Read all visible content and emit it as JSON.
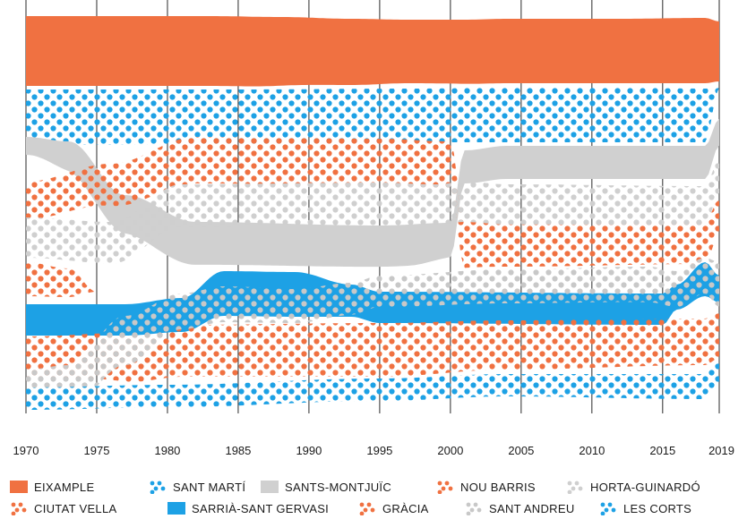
{
  "chart_data": {
    "type": "area",
    "x_ticks": [
      1970,
      1975,
      1980,
      1985,
      1990,
      1995,
      2000,
      2005,
      2010,
      2015,
      2019
    ],
    "xlim": [
      1970,
      2019
    ],
    "grid": "vertical",
    "legend_position": "bottom",
    "series": [
      {
        "name": "EIXAMPLE",
        "color": "#F07141",
        "pattern": "solid",
        "y": [
          [
            1970,
            0
          ],
          [
            1983,
            0
          ],
          [
            1988,
            1
          ],
          [
            1993,
            3
          ],
          [
            1997,
            4
          ],
          [
            2001,
            4
          ],
          [
            2004,
            3
          ],
          [
            2012,
            3
          ],
          [
            2018,
            2
          ],
          [
            2019,
            6
          ]
        ],
        "h": [
          [
            1970,
            78
          ],
          [
            1985,
            78
          ],
          [
            1993,
            74
          ],
          [
            1997,
            71
          ],
          [
            2004,
            72
          ],
          [
            2012,
            72
          ],
          [
            2018,
            73
          ],
          [
            2019,
            67
          ]
        ]
      },
      {
        "name": "SANT MARTÍ",
        "color": "#1DA1E5",
        "pattern": "dots",
        "y": [
          [
            1970,
            82
          ],
          [
            1985,
            82
          ],
          [
            1997,
            81
          ],
          [
            2004,
            80
          ],
          [
            2012,
            80
          ],
          [
            2018,
            81
          ],
          [
            2019,
            80
          ]
        ],
        "h": [
          [
            1970,
            62
          ],
          [
            1985,
            61
          ],
          [
            1997,
            60
          ],
          [
            2004,
            61
          ],
          [
            2012,
            61
          ],
          [
            2018,
            60
          ],
          [
            2019,
            0
          ]
        ]
      },
      {
        "name": "SANTS-MONTJUÏC",
        "color": "#D0D0D0",
        "pattern": "solid",
        "y": [
          [
            1970,
            135
          ],
          [
            1973,
            140
          ],
          [
            1977,
            200
          ],
          [
            1982,
            230
          ],
          [
            1995,
            234
          ],
          [
            2000,
            231
          ],
          [
            2001,
            150
          ],
          [
            2004,
            145
          ],
          [
            2018,
            145
          ],
          [
            2019,
            115
          ]
        ],
        "h": [
          [
            1970,
            20
          ],
          [
            1975,
            40
          ],
          [
            1980,
            48
          ],
          [
            1997,
            46
          ],
          [
            2001,
            37
          ],
          [
            2018,
            37
          ],
          [
            2019,
            30
          ]
        ]
      },
      {
        "name": "NOU BARRIS",
        "color": "#F07141",
        "pattern": "dots",
        "y": [
          [
            1970,
            185
          ],
          [
            1976,
            165
          ],
          [
            1982,
            135
          ],
          [
            1995,
            137
          ],
          [
            2000,
            140
          ],
          [
            2001,
            230
          ],
          [
            2004,
            232
          ],
          [
            2018,
            230
          ],
          [
            2019,
            205
          ]
        ],
        "h": [
          [
            1970,
            42
          ],
          [
            1982,
            52
          ],
          [
            1995,
            52
          ],
          [
            2000,
            52
          ],
          [
            2004,
            48
          ],
          [
            2018,
            47
          ],
          [
            2019,
            38
          ]
        ]
      },
      {
        "name": "HORTA-GUINARDÓ",
        "color": "#CFCFCF",
        "pattern": "dots",
        "y": [
          [
            1970,
            225
          ],
          [
            1976,
            230
          ],
          [
            1981,
            188
          ],
          [
            1995,
            186
          ],
          [
            1999,
            188
          ],
          [
            2001,
            185
          ],
          [
            2004,
            188
          ],
          [
            2018,
            190
          ],
          [
            2019,
            160
          ]
        ],
        "h": [
          [
            1970,
            45
          ],
          [
            1981,
            48
          ],
          [
            1995,
            48
          ],
          [
            2001,
            45
          ],
          [
            2018,
            44
          ],
          [
            2019,
            38
          ]
        ]
      },
      {
        "name": "CIUTAT VELLA",
        "color": "#F07141",
        "pattern": "dots",
        "y": [
          [
            1970,
            275
          ],
          [
            1973,
            282
          ],
          [
            1975,
            308
          ],
          [
            1978,
            308
          ],
          [
            2019,
            308
          ]
        ],
        "h": [
          [
            1970,
            38
          ],
          [
            1973,
            32
          ],
          [
            1975,
            0
          ],
          [
            2019,
            0
          ]
        ]
      },
      {
        "name": "SARRIÀ-SANT GERVASI",
        "color": "#1DA1E5",
        "pattern": "solid",
        "y": [
          [
            1970,
            322
          ],
          [
            1977,
            322
          ],
          [
            1981,
            315
          ],
          [
            1984,
            285
          ],
          [
            1989,
            286
          ],
          [
            1993,
            300
          ],
          [
            1995,
            308
          ],
          [
            2015,
            310
          ],
          [
            2016,
            300
          ],
          [
            2018,
            275
          ],
          [
            2019,
            290
          ]
        ],
        "h": [
          [
            1970,
            35
          ],
          [
            1977,
            35
          ],
          [
            1981,
            38
          ],
          [
            1984,
            50
          ],
          [
            1989,
            50
          ],
          [
            1993,
            36
          ],
          [
            1995,
            35
          ],
          [
            2015,
            35
          ],
          [
            2016,
            28
          ],
          [
            2018,
            38
          ],
          [
            2019,
            30
          ]
        ]
      },
      {
        "name": "GRÀCIA",
        "color": "#F07141",
        "pattern": "dots",
        "y": [
          [
            1970,
            358
          ],
          [
            1977,
            354
          ],
          [
            1981,
            345
          ],
          [
            1995,
            343
          ],
          [
            2004,
            340
          ],
          [
            2018,
            338
          ],
          [
            2019,
            332
          ]
        ],
        "h": [
          [
            1970,
            45
          ],
          [
            1981,
            58
          ],
          [
            1995,
            60
          ],
          [
            2004,
            55
          ],
          [
            2018,
            52
          ],
          [
            2019,
            50
          ]
        ]
      },
      {
        "name": "SANT ANDREU",
        "color": "#C8C8C8",
        "pattern": "dots",
        "y": [
          [
            1970,
            395
          ],
          [
            1973,
            390
          ],
          [
            1977,
            335
          ],
          [
            1981,
            310
          ],
          [
            1984,
            302
          ],
          [
            1989,
            305
          ],
          [
            1993,
            298
          ],
          [
            1995,
            290
          ],
          [
            2004,
            283
          ],
          [
            2014,
            280
          ],
          [
            2016,
            285
          ],
          [
            2018,
            270
          ],
          [
            2019,
            275
          ]
        ],
        "h": [
          [
            1970,
            38
          ],
          [
            1977,
            55
          ],
          [
            1981,
            40
          ],
          [
            1984,
            40
          ],
          [
            1989,
            38
          ],
          [
            1995,
            35
          ],
          [
            2004,
            38
          ],
          [
            2018,
            40
          ],
          [
            2019,
            50
          ]
        ]
      },
      {
        "name": "LES CORTS",
        "color": "#1DA1E5",
        "pattern": "dots",
        "y": [
          [
            1970,
            415
          ],
          [
            1980,
            412
          ],
          [
            1995,
            405
          ],
          [
            2004,
            400
          ],
          [
            2018,
            400
          ],
          [
            2019,
            385
          ]
        ],
        "h": [
          [
            1970,
            25
          ],
          [
            1980,
            25
          ],
          [
            1995,
            25
          ],
          [
            2004,
            25
          ],
          [
            2018,
            28
          ],
          [
            2019,
            25
          ]
        ]
      }
    ]
  }
}
